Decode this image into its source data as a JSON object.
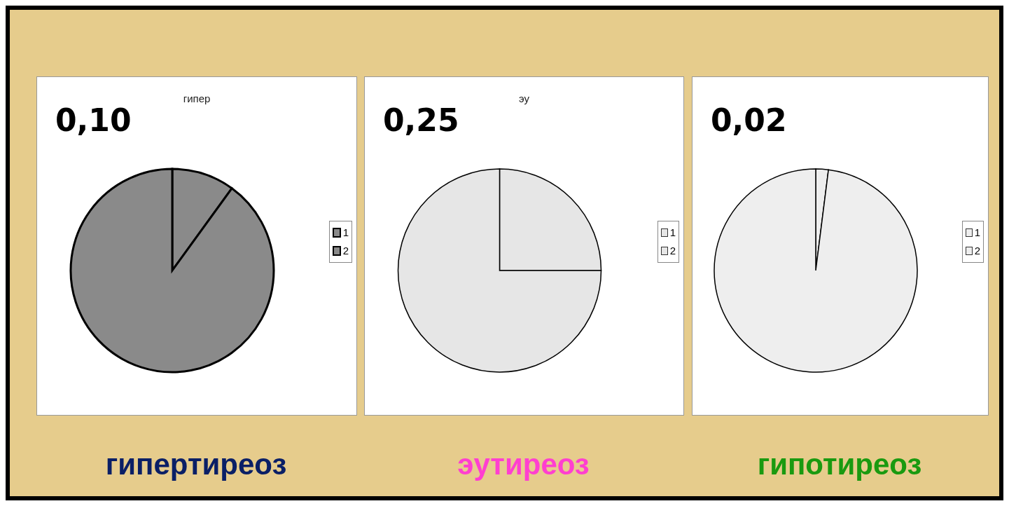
{
  "chart_data": [
    {
      "type": "pie",
      "title": "гипер",
      "categories": [
        "1",
        "2"
      ],
      "values": [
        10,
        90
      ],
      "colors": [
        "#8a8a8a",
        "#8a8a8a"
      ],
      "legend": "right",
      "annotations": [
        "0,10",
        "гипертиреоз"
      ]
    },
    {
      "type": "pie",
      "title": "эу",
      "categories": [
        "1",
        "2"
      ],
      "values": [
        25,
        75
      ],
      "colors": [
        "#e6e6e6",
        "#e6e6e6"
      ],
      "legend": "right",
      "annotations": [
        "0,25",
        "эутиреоз"
      ]
    },
    {
      "type": "pie",
      "categories": [
        "1",
        "2"
      ],
      "values": [
        2,
        98
      ],
      "colors": [
        "#eeeeee",
        "#eeeeee"
      ],
      "legend": "right",
      "annotations": [
        "0,02",
        "гипотиреоз"
      ]
    }
  ]
}
